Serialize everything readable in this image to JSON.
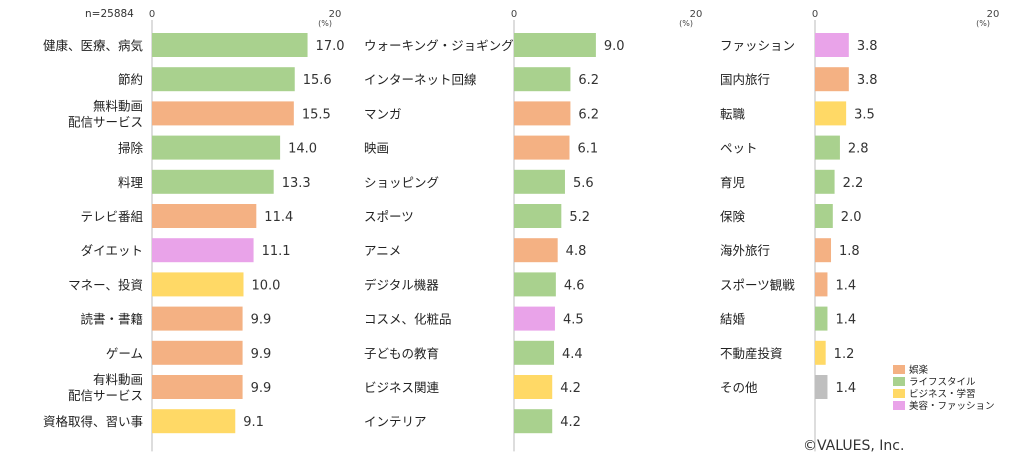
{
  "sample_size": "n=25884",
  "copyright": "©VALUES, Inc.",
  "colors": {
    "entertainment": "#f4b183",
    "lifestyle": "#a9d18e",
    "business": "#ffd966",
    "beauty": "#e9a3e9",
    "other": "#bfbfbf"
  },
  "legend": [
    {
      "key": "entertainment",
      "label": "娯楽"
    },
    {
      "key": "lifestyle",
      "label": "ライフスタイル"
    },
    {
      "key": "business",
      "label": "ビジネス・学習"
    },
    {
      "key": "beauty",
      "label": "美容・ファッション"
    }
  ],
  "chart_data": [
    {
      "type": "bar",
      "orientation": "horizontal",
      "xlim": [
        0,
        20
      ],
      "xticks": [
        "0",
        "20"
      ],
      "unit": "(%)",
      "categories": [
        "健康、医療、病気",
        "節約",
        "無料動画\n配信サービス",
        "掃除",
        "料理",
        "テレビ番組",
        "ダイエット",
        "マネー、投資",
        "読書・書籍",
        "ゲーム",
        "有料動画\n配信サービス",
        "資格取得、習い事"
      ],
      "values": [
        17.0,
        15.6,
        15.5,
        14.0,
        13.3,
        11.4,
        11.1,
        10.0,
        9.9,
        9.9,
        9.9,
        9.1
      ],
      "labels": [
        "17.0",
        "15.6",
        "15.5",
        "14.0",
        "13.3",
        "11.4",
        "11.1",
        "10.0",
        "9.9",
        "9.9",
        "9.9",
        "9.1"
      ],
      "groups": [
        "lifestyle",
        "lifestyle",
        "entertainment",
        "lifestyle",
        "lifestyle",
        "entertainment",
        "beauty",
        "business",
        "entertainment",
        "entertainment",
        "entertainment",
        "business"
      ]
    },
    {
      "type": "bar",
      "orientation": "horizontal",
      "xlim": [
        0,
        20
      ],
      "xticks": [
        "0",
        "20"
      ],
      "unit": "(%)",
      "categories": [
        "ウォーキング・ジョギング",
        "インターネット回線",
        "マンガ",
        "映画",
        "ショッピング",
        "スポーツ",
        "アニメ",
        "デジタル機器",
        "コスメ、化粧品",
        "子どもの教育",
        "ビジネス関連",
        "インテリア"
      ],
      "values": [
        9.0,
        6.2,
        6.2,
        6.1,
        5.6,
        5.2,
        4.8,
        4.6,
        4.5,
        4.4,
        4.2,
        4.2
      ],
      "labels": [
        "9.0",
        "6.2",
        "6.2",
        "6.1",
        "5.6",
        "5.2",
        "4.8",
        "4.6",
        "4.5",
        "4.4",
        "4.2",
        "4.2"
      ],
      "groups": [
        "lifestyle",
        "lifestyle",
        "entertainment",
        "entertainment",
        "lifestyle",
        "lifestyle",
        "entertainment",
        "lifestyle",
        "beauty",
        "lifestyle",
        "business",
        "lifestyle"
      ]
    },
    {
      "type": "bar",
      "orientation": "horizontal",
      "xlim": [
        0,
        20
      ],
      "xticks": [
        "0",
        "20"
      ],
      "unit": "(%)",
      "categories": [
        "ファッション",
        "国内旅行",
        "転職",
        "ペット",
        "育児",
        "保険",
        "海外旅行",
        "スポーツ観戦",
        "結婚",
        "不動産投資",
        "その他"
      ],
      "values": [
        3.8,
        3.8,
        3.5,
        2.8,
        2.2,
        2.0,
        1.8,
        1.4,
        1.4,
        1.2,
        1.4
      ],
      "labels": [
        "3.8",
        "3.8",
        "3.5",
        "2.8",
        "2.2",
        "2.0",
        "1.8",
        "1.4",
        "1.4",
        "1.2",
        "1.4"
      ],
      "groups": [
        "beauty",
        "entertainment",
        "business",
        "lifestyle",
        "lifestyle",
        "lifestyle",
        "entertainment",
        "entertainment",
        "lifestyle",
        "business",
        "other"
      ]
    }
  ]
}
